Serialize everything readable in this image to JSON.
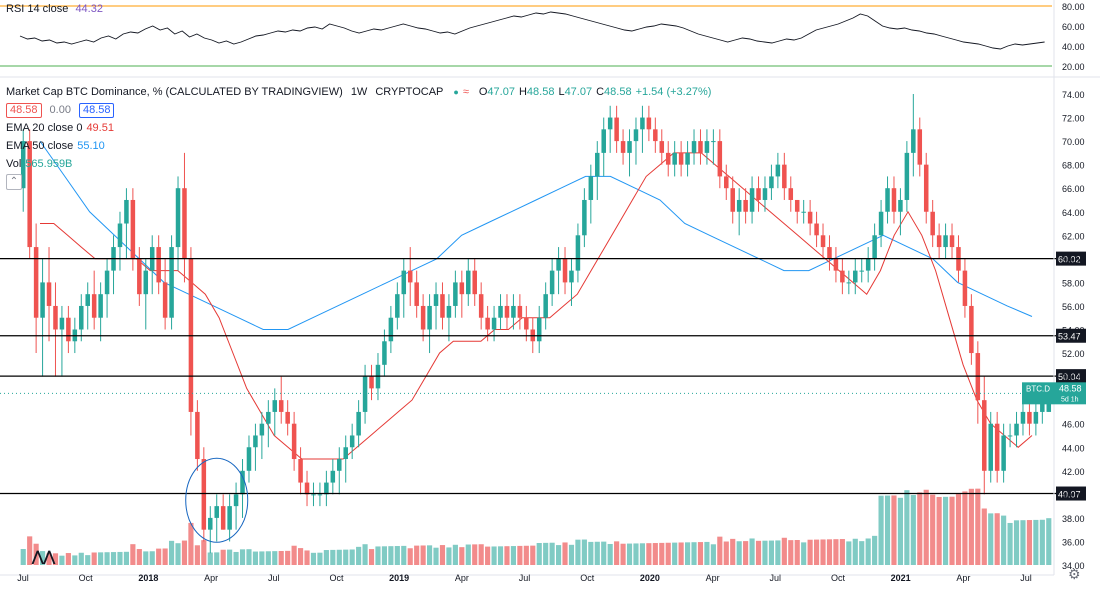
{
  "rsi": {
    "label": "RSI 14 close",
    "value": "44.32",
    "scale_labels": [
      "80.00",
      "60.00",
      "40.00",
      "20.00"
    ],
    "levels": [
      80,
      60,
      40,
      20
    ],
    "upper_band": 80,
    "lower_band": 20,
    "series": [
      50,
      47,
      48,
      45,
      46,
      43,
      44,
      42,
      44,
      46,
      44,
      48,
      50,
      47,
      52,
      54,
      53,
      57,
      60,
      56,
      58,
      52,
      55,
      49,
      52,
      48,
      46,
      43,
      45,
      42,
      44,
      47,
      50,
      51,
      53,
      55,
      54,
      56,
      55,
      58,
      59,
      57,
      62,
      60,
      58,
      55,
      53,
      55,
      57,
      56,
      58,
      60,
      62,
      60,
      58,
      57,
      55,
      53,
      54,
      52,
      55,
      58,
      60,
      62,
      64,
      66,
      68,
      70,
      69,
      71,
      73,
      72,
      74,
      73,
      72,
      70,
      68,
      66,
      64,
      62,
      60,
      58,
      56,
      55,
      57,
      59,
      60,
      62,
      61,
      60,
      58,
      55,
      52,
      50,
      48,
      46,
      44,
      46,
      48,
      47,
      45,
      44,
      43,
      45,
      47,
      46,
      48,
      52,
      56,
      58,
      60,
      62,
      65,
      68,
      72,
      70,
      65,
      60,
      58,
      57,
      58,
      56,
      55,
      53,
      52,
      50,
      48,
      46,
      44,
      43,
      42,
      40,
      38,
      37,
      40,
      42,
      41,
      42,
      43,
      44
    ]
  },
  "header": {
    "title": "Market Cap BTC Dominance, % (CALCULATED BY TRADINGVIEW)",
    "interval": "1W",
    "exchange": "CRYPTOCAP",
    "ohlc": {
      "o_label": "O",
      "o": "47.07",
      "h_label": "H",
      "h": "48.58",
      "l_label": "L",
      "l": "47.07",
      "c_label": "C",
      "c": "48.58",
      "change": "+1.54 (+3.27%)"
    },
    "bid": "48.58",
    "spread": "0.00",
    "ask": "48.58"
  },
  "indicators": {
    "ema20_label": "EMA 20 close 0",
    "ema20_value": "49.51",
    "ema50_label": "EMA 50 close",
    "ema50_value": "55.10",
    "vol_label": "Vol",
    "vol_value": "565.959B"
  },
  "colors": {
    "up": "#26a69a",
    "down": "#ef5350",
    "ema20": "#e53935",
    "ema50": "#2196f3",
    "vol_up": "#80cbc4",
    "vol_down": "#f28b8b",
    "rsi_line": "#131722",
    "rsi_upper": "#ff9800",
    "rsi_lower": "#4caf50",
    "circle": "#1565c0",
    "price_tag": "#26a69a"
  },
  "price_scale": [
    "74.00",
    "72.00",
    "70.00",
    "68.00",
    "66.00",
    "64.00",
    "62.00",
    "60.00",
    "58.00",
    "56.00",
    "54.00",
    "52.00",
    "50.00",
    "48.00",
    "46.00",
    "44.00",
    "42.00",
    "40.00",
    "38.00",
    "36.00",
    "34.00"
  ],
  "price_scale_min": 34,
  "price_scale_max": 74,
  "levels": [
    {
      "label": "60.02",
      "value": 60.02
    },
    {
      "label": "53.47",
      "value": 53.47
    },
    {
      "label": "50.04",
      "value": 50.04
    },
    {
      "label": "40.07",
      "value": 40.07
    }
  ],
  "last_price": {
    "symbol": "BTC.D",
    "value": "48.58",
    "countdown": "5d 1h"
  },
  "x_axis": [
    "Jul",
    "Oct",
    "2018",
    "Apr",
    "Jul",
    "Oct",
    "2019",
    "Apr",
    "Jul",
    "Oct",
    "2020",
    "Apr",
    "Jul",
    "Oct",
    "2021",
    "Apr",
    "Jul"
  ],
  "x_axis_weeks": [
    0,
    13,
    26,
    39,
    52,
    65,
    78,
    91,
    104,
    117,
    130,
    143,
    156,
    169,
    182,
    195,
    208
  ],
  "chart_data": {
    "type": "candlestick",
    "symbol": "BTC.D",
    "interval": "1W",
    "ylim": [
      34,
      74
    ],
    "weeks": 214,
    "candles_ohlc": [
      [
        66,
        71,
        64,
        70
      ],
      [
        70,
        71,
        60,
        61
      ],
      [
        61,
        63,
        52,
        55
      ],
      [
        55,
        60,
        50,
        58
      ],
      [
        58,
        61,
        53,
        56
      ],
      [
        56,
        58,
        50,
        54
      ],
      [
        54,
        56,
        50,
        55
      ],
      [
        55,
        56,
        52,
        53
      ],
      [
        53,
        55,
        52,
        54
      ],
      [
        54,
        57,
        53,
        56
      ],
      [
        56,
        58,
        54,
        57
      ],
      [
        57,
        59,
        54,
        55
      ],
      [
        55,
        58,
        53,
        57
      ],
      [
        57,
        60,
        55,
        59
      ],
      [
        59,
        62,
        57,
        61
      ],
      [
        61,
        64,
        59,
        63
      ],
      [
        63,
        66,
        60,
        65
      ],
      [
        65,
        66,
        59,
        60
      ],
      [
        60,
        61,
        56,
        57
      ],
      [
        57,
        60,
        54,
        59
      ],
      [
        59,
        62,
        57,
        61
      ],
      [
        61,
        62,
        57,
        58
      ],
      [
        58,
        60,
        54,
        55
      ],
      [
        55,
        62,
        54,
        61
      ],
      [
        61,
        67,
        59,
        66
      ],
      [
        66,
        69,
        58,
        60
      ],
      [
        60,
        61,
        45,
        47
      ],
      [
        47,
        48,
        42,
        43
      ],
      [
        43,
        44,
        36,
        37
      ],
      [
        37,
        39,
        35,
        38
      ],
      [
        38,
        40,
        36,
        39
      ],
      [
        39,
        40,
        37,
        37
      ],
      [
        37,
        40,
        36,
        39
      ],
      [
        39,
        41,
        37,
        40
      ],
      [
        40,
        43,
        38,
        42
      ],
      [
        42,
        45,
        41,
        44
      ],
      [
        44,
        46,
        42,
        45
      ],
      [
        45,
        47,
        43,
        46
      ],
      [
        46,
        48,
        44,
        47
      ],
      [
        47,
        49,
        45,
        48
      ],
      [
        48,
        50,
        46,
        47
      ],
      [
        47,
        48,
        45,
        46
      ],
      [
        46,
        47,
        42,
        43
      ],
      [
        43,
        44,
        40,
        41
      ],
      [
        41,
        42,
        39,
        40
      ],
      [
        40,
        41,
        39,
        40
      ],
      [
        40,
        41,
        39,
        40
      ],
      [
        40,
        42,
        39,
        41
      ],
      [
        41,
        43,
        40,
        42
      ],
      [
        42,
        44,
        40,
        43
      ],
      [
        43,
        45,
        41,
        44
      ],
      [
        44,
        46,
        43,
        45
      ],
      [
        45,
        48,
        44,
        47
      ],
      [
        47,
        51,
        46,
        50
      ],
      [
        50,
        51,
        48,
        49
      ],
      [
        49,
        52,
        48,
        51
      ],
      [
        51,
        54,
        50,
        53
      ],
      [
        53,
        56,
        52,
        55
      ],
      [
        55,
        58,
        54,
        57
      ],
      [
        57,
        60,
        55,
        59
      ],
      [
        59,
        61,
        56,
        58
      ],
      [
        58,
        59,
        55,
        56
      ],
      [
        56,
        57,
        53,
        54
      ],
      [
        54,
        57,
        52,
        56
      ],
      [
        56,
        58,
        54,
        57
      ],
      [
        57,
        58,
        54,
        55
      ],
      [
        55,
        57,
        53,
        56
      ],
      [
        56,
        59,
        55,
        58
      ],
      [
        58,
        59,
        55,
        57
      ],
      [
        57,
        60,
        56,
        59
      ],
      [
        59,
        60,
        56,
        57
      ],
      [
        57,
        58,
        54,
        55
      ],
      [
        55,
        56,
        53,
        54
      ],
      [
        54,
        56,
        53,
        55
      ],
      [
        55,
        57,
        54,
        56
      ],
      [
        56,
        57,
        54,
        55
      ],
      [
        55,
        57,
        54,
        56
      ],
      [
        56,
        57,
        54,
        55
      ],
      [
        55,
        56,
        53,
        54
      ],
      [
        54,
        55,
        52,
        53
      ],
      [
        53,
        56,
        52,
        55
      ],
      [
        55,
        58,
        54,
        57
      ],
      [
        57,
        60,
        56,
        59
      ],
      [
        59,
        61,
        57,
        60
      ],
      [
        60,
        61,
        57,
        58
      ],
      [
        58,
        60,
        56,
        59
      ],
      [
        59,
        63,
        58,
        62
      ],
      [
        62,
        66,
        61,
        65
      ],
      [
        65,
        68,
        63,
        67
      ],
      [
        67,
        70,
        65,
        69
      ],
      [
        69,
        72,
        67,
        71
      ],
      [
        71,
        73,
        69,
        72
      ],
      [
        72,
        73,
        69,
        70
      ],
      [
        70,
        71,
        68,
        69
      ],
      [
        69,
        71,
        67,
        70
      ],
      [
        70,
        72,
        68,
        71
      ],
      [
        71,
        73,
        69,
        72
      ],
      [
        72,
        73,
        70,
        71
      ],
      [
        71,
        72,
        69,
        70
      ],
      [
        70,
        71,
        68,
        69
      ],
      [
        69,
        70,
        67,
        68
      ],
      [
        68,
        70,
        67,
        69
      ],
      [
        69,
        70,
        67,
        68
      ],
      [
        68,
        70,
        67,
        69
      ],
      [
        69,
        71,
        68,
        70
      ],
      [
        70,
        71,
        68,
        69
      ],
      [
        69,
        71,
        68,
        70
      ],
      [
        70,
        71,
        68,
        70
      ],
      [
        70,
        71,
        66,
        67
      ],
      [
        67,
        68,
        65,
        66
      ],
      [
        66,
        67,
        63,
        64
      ],
      [
        64,
        66,
        62,
        65
      ],
      [
        65,
        66,
        63,
        64
      ],
      [
        64,
        67,
        63,
        66
      ],
      [
        66,
        67,
        64,
        65
      ],
      [
        65,
        67,
        64,
        66
      ],
      [
        66,
        68,
        65,
        67
      ],
      [
        67,
        69,
        66,
        68
      ],
      [
        68,
        69,
        65,
        66
      ],
      [
        66,
        67,
        64,
        65
      ],
      [
        65,
        65,
        63,
        64
      ],
      [
        64,
        65,
        63,
        64
      ],
      [
        64,
        65,
        62,
        63
      ],
      [
        63,
        64,
        61,
        62
      ],
      [
        62,
        63,
        60,
        61
      ],
      [
        61,
        62,
        59,
        60
      ],
      [
        60,
        61,
        58,
        59
      ],
      [
        59,
        60,
        57,
        58
      ],
      [
        58,
        59,
        57,
        58
      ],
      [
        58,
        60,
        57,
        59
      ],
      [
        59,
        60,
        58,
        59
      ],
      [
        59,
        61,
        58,
        60
      ],
      [
        60,
        63,
        59,
        62
      ],
      [
        62,
        65,
        61,
        64
      ],
      [
        64,
        67,
        63,
        66
      ],
      [
        66,
        67,
        63,
        64
      ],
      [
        64,
        66,
        62,
        65
      ],
      [
        65,
        70,
        64,
        69
      ],
      [
        69,
        74,
        67,
        71
      ],
      [
        71,
        72,
        67,
        68
      ],
      [
        68,
        69,
        63,
        64
      ],
      [
        64,
        65,
        61,
        62
      ],
      [
        62,
        63,
        60,
        61
      ],
      [
        61,
        63,
        60,
        62
      ],
      [
        62,
        63,
        60,
        61
      ],
      [
        61,
        62,
        58,
        59
      ],
      [
        59,
        60,
        55,
        56
      ],
      [
        56,
        57,
        51,
        52
      ],
      [
        52,
        53,
        46,
        48
      ],
      [
        48,
        50,
        40,
        42
      ],
      [
        42,
        47,
        41,
        46
      ],
      [
        46,
        47,
        41,
        42
      ],
      [
        42,
        46,
        41,
        45
      ],
      [
        45,
        46,
        44,
        45
      ],
      [
        45,
        47,
        44,
        46
      ],
      [
        46,
        48,
        45,
        47
      ],
      [
        47,
        49,
        45,
        46
      ],
      [
        46,
        48,
        45,
        47
      ],
      [
        47,
        49,
        46,
        48
      ],
      [
        47,
        49,
        47,
        48.58
      ]
    ],
    "ema20": [
      63,
      63,
      62,
      61,
      60,
      60,
      60,
      60,
      59,
      59,
      59,
      58,
      57,
      55,
      52,
      49,
      47,
      45,
      44,
      43,
      43,
      43,
      43,
      44,
      45,
      46,
      47,
      48,
      50,
      52,
      53,
      53,
      53,
      54,
      54,
      55,
      55,
      55,
      56,
      57,
      59,
      61,
      63,
      65,
      67,
      68,
      69,
      69,
      69,
      68,
      67,
      66,
      65,
      64,
      63,
      62,
      61,
      60,
      59,
      58,
      57,
      59,
      62,
      64,
      62,
      59,
      55,
      51,
      48,
      46,
      45,
      44,
      45
    ],
    "ema50": [
      70,
      67,
      64,
      62,
      60,
      58,
      57,
      56,
      55,
      54,
      54,
      55,
      56,
      57,
      58,
      59,
      60,
      62,
      63,
      64,
      65,
      66,
      67,
      67,
      66,
      65,
      63,
      62,
      61,
      60,
      59,
      59,
      60,
      61,
      62,
      61,
      60,
      58,
      57,
      56,
      55.1
    ],
    "volume_scale_note": "relative",
    "annotations": [
      "circle around early-2018 low"
    ]
  }
}
